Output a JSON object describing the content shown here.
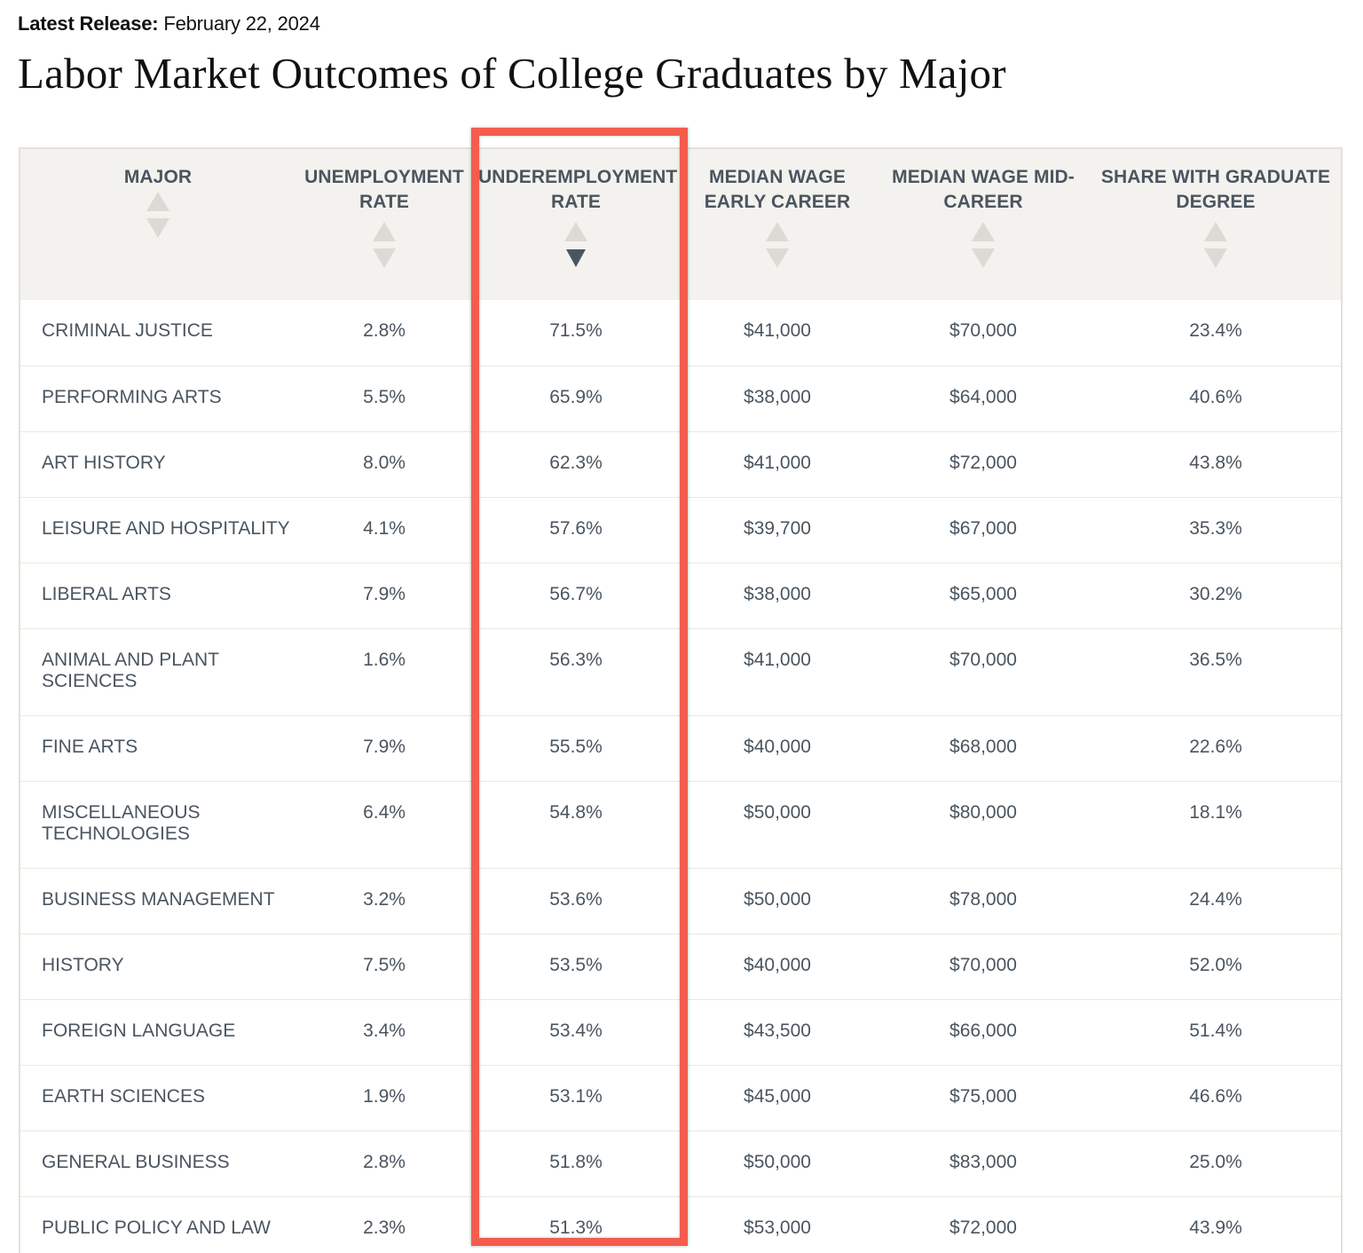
{
  "header": {
    "release_label": "Latest Release:",
    "release_date": "February 22, 2024",
    "title": "Labor Market Outcomes of College Graduates by Major"
  },
  "colors": {
    "highlight": "#f45c4e",
    "header_bg": "#f4f2ee",
    "text": "#4a5560"
  },
  "chart_data": {
    "type": "table",
    "sorted_by": "UNDEREMPLOYMENT RATE",
    "sort_direction": "descending",
    "columns": [
      "MAJOR",
      "UNEMPLOYMENT RATE",
      "UNDEREMPLOYMENT RATE",
      "MEDIAN WAGE EARLY CAREER",
      "MEDIAN WAGE MID-CAREER",
      "SHARE WITH GRADUATE DEGREE"
    ],
    "rows": [
      [
        "CRIMINAL JUSTICE",
        "2.8%",
        "71.5%",
        "$41,000",
        "$70,000",
        "23.4%"
      ],
      [
        "PERFORMING ARTS",
        "5.5%",
        "65.9%",
        "$38,000",
        "$64,000",
        "40.6%"
      ],
      [
        "ART HISTORY",
        "8.0%",
        "62.3%",
        "$41,000",
        "$72,000",
        "43.8%"
      ],
      [
        "LEISURE AND HOSPITALITY",
        "4.1%",
        "57.6%",
        "$39,700",
        "$67,000",
        "35.3%"
      ],
      [
        "LIBERAL ARTS",
        "7.9%",
        "56.7%",
        "$38,000",
        "$65,000",
        "30.2%"
      ],
      [
        "ANIMAL AND PLANT SCIENCES",
        "1.6%",
        "56.3%",
        "$41,000",
        "$70,000",
        "36.5%"
      ],
      [
        "FINE ARTS",
        "7.9%",
        "55.5%",
        "$40,000",
        "$68,000",
        "22.6%"
      ],
      [
        "MISCELLANEOUS TECHNOLOGIES",
        "6.4%",
        "54.8%",
        "$50,000",
        "$80,000",
        "18.1%"
      ],
      [
        "BUSINESS MANAGEMENT",
        "3.2%",
        "53.6%",
        "$50,000",
        "$78,000",
        "24.4%"
      ],
      [
        "HISTORY",
        "7.5%",
        "53.5%",
        "$40,000",
        "$70,000",
        "52.0%"
      ],
      [
        "FOREIGN LANGUAGE",
        "3.4%",
        "53.4%",
        "$43,500",
        "$66,000",
        "51.4%"
      ],
      [
        "EARTH SCIENCES",
        "1.9%",
        "53.1%",
        "$45,000",
        "$75,000",
        "46.6%"
      ],
      [
        "GENERAL BUSINESS",
        "2.8%",
        "51.8%",
        "$50,000",
        "$83,000",
        "25.0%"
      ],
      [
        "PUBLIC POLICY AND LAW",
        "2.3%",
        "51.3%",
        "$53,000",
        "$72,000",
        "43.9%"
      ]
    ]
  }
}
